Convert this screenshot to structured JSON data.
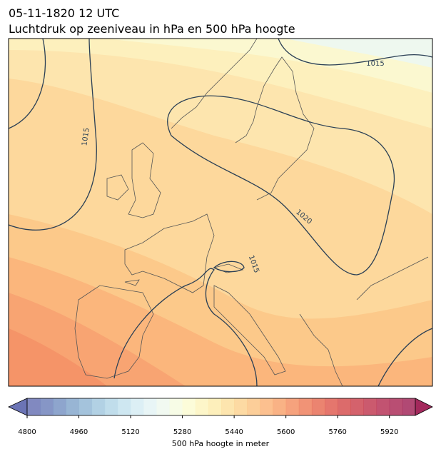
{
  "title": [
    "05-11-1820 12 UTC",
    "Luchtdruk op zeeniveau in hPa en 500 hPa hoogte"
  ],
  "contour_labels": [
    1015,
    1015,
    1020,
    1015
  ],
  "colorbar": {
    "label": "500 hPa hoogte in meter",
    "lim": [
      4800,
      6000
    ],
    "ticks": [
      4800,
      4960,
      5120,
      5280,
      5440,
      5600,
      5760,
      5920
    ],
    "colors": [
      "#6b74b5",
      "#7184bc",
      "#7a95c4",
      "#86a8cd",
      "#94b9d6",
      "#a4c9df",
      "#b5d7e7",
      "#c6e3ee",
      "#d6ecf3",
      "#e4f3f5",
      "#eef8ef",
      "#f6fbe2",
      "#fbfbd2",
      "#fdf5c0",
      "#fdecaf",
      "#fde1a0",
      "#fdd493",
      "#fcc587",
      "#fbb57b",
      "#f8a470",
      "#f49266",
      "#ef805e",
      "#e86e57",
      "#e05e53",
      "#d65151",
      "#cc4652",
      "#c23d55",
      "#b73558",
      "#ad2f5a",
      "#a3295c"
    ]
  }
}
